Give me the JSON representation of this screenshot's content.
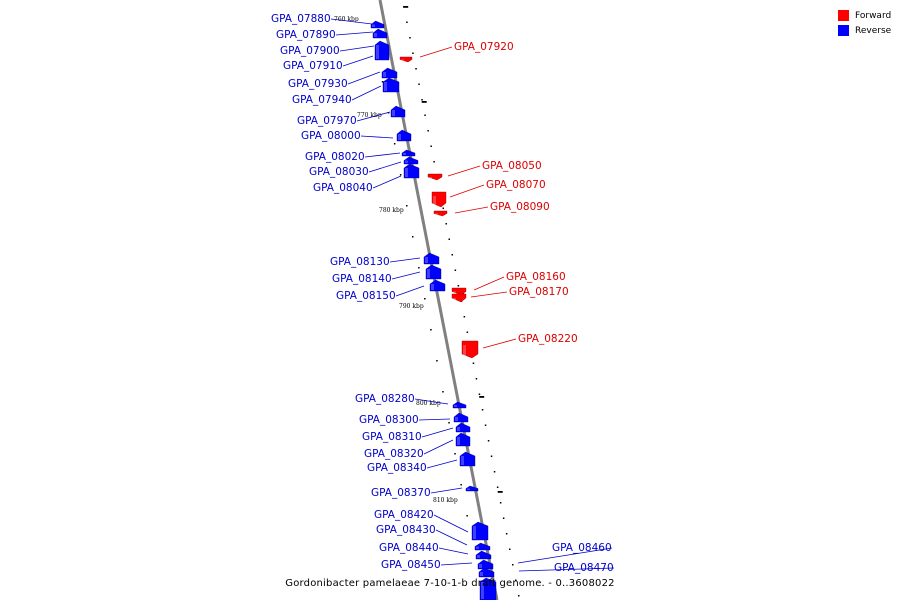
{
  "legend": [
    {
      "label": "Forward",
      "color": "#ff0000"
    },
    {
      "label": "Reverse",
      "color": "#0000ff"
    }
  ],
  "caption": "Gordonibacter pamelaeae 7-10-1-b draft genome. - 0..3608022",
  "colors": {
    "forward": "#ff0000",
    "reverse": "#0000ff",
    "backbone": "#808080",
    "label_forward": "#dd0000",
    "label_reverse": "#0000cc"
  },
  "kbp_labels": [
    "760 kbp",
    "770 kbp",
    "780 kbp",
    "790 kbp",
    "800 kbp",
    "810 kbp"
  ],
  "genes": [
    {
      "name": "GPA_07880",
      "strand": "reverse"
    },
    {
      "name": "GPA_07890",
      "strand": "reverse"
    },
    {
      "name": "GPA_07900",
      "strand": "reverse"
    },
    {
      "name": "GPA_07910",
      "strand": "reverse"
    },
    {
      "name": "GPA_07920",
      "strand": "forward"
    },
    {
      "name": "GPA_07930",
      "strand": "reverse"
    },
    {
      "name": "GPA_07940",
      "strand": "reverse"
    },
    {
      "name": "GPA_07970",
      "strand": "reverse"
    },
    {
      "name": "GPA_08000",
      "strand": "reverse"
    },
    {
      "name": "GPA_08020",
      "strand": "reverse"
    },
    {
      "name": "GPA_08030",
      "strand": "reverse"
    },
    {
      "name": "GPA_08040",
      "strand": "reverse"
    },
    {
      "name": "GPA_08050",
      "strand": "forward"
    },
    {
      "name": "GPA_08070",
      "strand": "forward"
    },
    {
      "name": "GPA_08090",
      "strand": "forward"
    },
    {
      "name": "GPA_08130",
      "strand": "reverse"
    },
    {
      "name": "GPA_08140",
      "strand": "reverse"
    },
    {
      "name": "GPA_08150",
      "strand": "reverse"
    },
    {
      "name": "GPA_08160",
      "strand": "forward"
    },
    {
      "name": "GPA_08170",
      "strand": "forward"
    },
    {
      "name": "GPA_08220",
      "strand": "forward"
    },
    {
      "name": "GPA_08280",
      "strand": "reverse"
    },
    {
      "name": "GPA_08300",
      "strand": "reverse"
    },
    {
      "name": "GPA_08310",
      "strand": "reverse"
    },
    {
      "name": "GPA_08320",
      "strand": "reverse"
    },
    {
      "name": "GPA_08340",
      "strand": "reverse"
    },
    {
      "name": "GPA_08370",
      "strand": "reverse"
    },
    {
      "name": "GPA_08420",
      "strand": "reverse"
    },
    {
      "name": "GPA_08430",
      "strand": "reverse"
    },
    {
      "name": "GPA_08440",
      "strand": "reverse"
    },
    {
      "name": "GPA_08450",
      "strand": "reverse"
    },
    {
      "name": "GPA_08460",
      "strand": "reverse"
    },
    {
      "name": "GPA_08470",
      "strand": "reverse"
    }
  ]
}
